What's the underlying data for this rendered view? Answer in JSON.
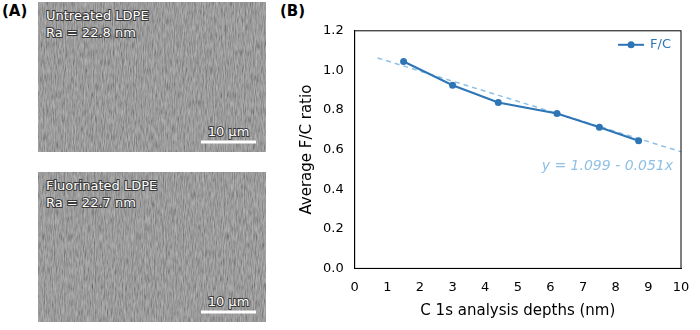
{
  "panel_a": {
    "label": "(A)",
    "images": [
      {
        "title": "Untreated LDPE",
        "roughness": "Ra = 22.8 nm",
        "scale_bar": "10 μm"
      },
      {
        "title": "Fluorinated LDPE",
        "roughness": "Ra = 22.7 nm",
        "scale_bar": "10 μm"
      }
    ]
  },
  "chart_data": {
    "type": "line",
    "panel_label": "(B)",
    "x_label": "C 1s analysis depths (nm)",
    "y_label": "Average F/C ratio",
    "x": [
      1.5,
      3.0,
      4.4,
      6.2,
      7.5,
      8.7
    ],
    "series": [
      {
        "name": "F/C",
        "color": "#2e75b6",
        "values": [
          1.045,
          0.925,
          0.838,
          0.782,
          0.713,
          0.645
        ],
        "marker": "circle",
        "line_style": "solid"
      },
      {
        "color": "#8fc0e6",
        "x": [
          0.7,
          10
        ],
        "values": [
          1.063,
          0.589
        ],
        "marker": "none",
        "line_style": "dashed"
      }
    ],
    "annotation": "y = 1.099 - 0.051x",
    "xlim": [
      0,
      10
    ],
    "xticks": [
      0,
      1,
      2,
      3,
      4,
      5,
      6,
      7,
      8,
      9,
      10
    ],
    "ylim": [
      0,
      1.2
    ],
    "yticks": [
      {
        "value": 0,
        "label": "0.0"
      },
      0.2,
      0.4,
      0.6,
      0.8,
      {
        "value": 1,
        "label": "1.0"
      },
      1.2
    ],
    "grid": false,
    "legend": "upper right"
  }
}
